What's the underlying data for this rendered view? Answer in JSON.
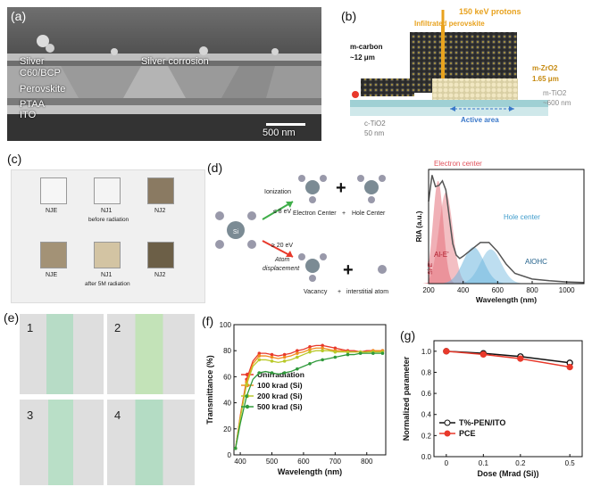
{
  "panel_a": {
    "label": "(a)",
    "layers": [
      "Silver",
      "C60/BCP",
      "Perovskite",
      "PTAA",
      "ITO"
    ],
    "corrosion": "Silver corrosion",
    "scalebar": "500 nm"
  },
  "panel_b": {
    "label": "(b)",
    "protons": "150 keV protons",
    "infiltrated": "Infiltrated perovskite",
    "mcarbon": "m-carbon",
    "mcarbon_thick": "~12 μm",
    "mzro2": "m-ZrO2",
    "mzro2_thick": "1.65 μm",
    "mtio2": "m-TiO2",
    "mtio2_thick": "~600 nm",
    "ctio2": "c-TiO2",
    "ctio2_thick": "50 nm",
    "active_area": "Active area"
  },
  "panel_c": {
    "label": "(c)",
    "samples": [
      "NJE",
      "NJ1",
      "NJ2"
    ],
    "before": "before radiation",
    "after": "after 5M radiation"
  },
  "panel_d": {
    "label": "(d)",
    "ionization": "Ionization",
    "ion_energy": "≤ 8 eV",
    "electron_center": "Electron Center",
    "plus_symbol": "+",
    "hole_center": "Hole Center",
    "displacement_energy": "≥ 20 eV",
    "atom": "Atom",
    "displacement": "displacement",
    "vacancy": "Vacancy",
    "interstitial": "interstitial atom",
    "atom_symbol": "Si",
    "chart_title_electron": "Electron center",
    "chart_title_hole": "Hole center",
    "band_alE": "Al-E'",
    "band_siE": "Si-E'",
    "band_alohc": "AlOHC",
    "ylabel": "RIA (a.u.)",
    "xlabel": "Wavelength (nm)",
    "xticks": [
      "200",
      "400",
      "600",
      "800",
      "1000"
    ]
  },
  "panel_e": {
    "label": "(e)",
    "numbers": [
      "1",
      "2",
      "3",
      "4"
    ]
  },
  "panel_f": {
    "label": "(f)"
  },
  "panel_g": {
    "label": "(g)"
  },
  "colors": {
    "unirr": "#e8392b",
    "k100": "#f08c1e",
    "k200": "#b9c92a",
    "k500": "#2f9a3b",
    "black_series": "#111111",
    "pce": "#e8392b",
    "orange_text": "#e8a21e",
    "blue_text": "#3a78c9",
    "electron_band": "#e4707a",
    "hole_band": "#6db6de"
  },
  "chart_data": [
    {
      "type": "line",
      "xlabel": "Wavelength (nm)",
      "ylabel": "Transmittance (%)",
      "xlim": [
        380,
        860
      ],
      "ylim": [
        0,
        100
      ],
      "xticks": [
        400,
        500,
        600,
        700,
        800
      ],
      "yticks": [
        0,
        20,
        40,
        60,
        80,
        100
      ],
      "legend_position": "center",
      "x": [
        385,
        400,
        420,
        440,
        460,
        480,
        500,
        520,
        540,
        560,
        580,
        600,
        620,
        640,
        660,
        680,
        700,
        720,
        740,
        760,
        780,
        800,
        820,
        840,
        850
      ],
      "series": [
        {
          "name": "Unirradiation",
          "values": [
            5,
            30,
            58,
            72,
            78,
            78,
            77,
            76,
            77,
            78,
            80,
            81,
            83,
            84,
            84,
            83,
            82,
            81,
            80,
            80,
            79,
            80,
            80,
            80,
            80
          ]
        },
        {
          "name": "100 krad (Si)",
          "values": [
            5,
            29,
            56,
            70,
            76,
            76,
            75,
            74,
            75,
            76,
            78,
            79,
            81,
            82,
            82,
            81,
            80,
            80,
            79,
            79,
            79,
            79,
            80,
            80,
            80
          ]
        },
        {
          "name": "200 krad (Si)",
          "values": [
            5,
            28,
            54,
            68,
            73,
            73,
            72,
            71,
            72,
            73,
            75,
            77,
            79,
            80,
            80,
            80,
            79,
            79,
            79,
            79,
            79,
            79,
            79,
            79,
            79
          ]
        },
        {
          "name": "500 krad (Si)",
          "values": [
            5,
            24,
            45,
            58,
            63,
            64,
            63,
            62,
            63,
            64,
            66,
            68,
            70,
            72,
            73,
            74,
            75,
            76,
            77,
            77,
            78,
            78,
            78,
            78,
            78
          ]
        }
      ]
    },
    {
      "type": "line",
      "xlabel": "Dose (Mrad (Si))",
      "ylabel": "Normalized parameter",
      "xlim": [
        -0.05,
        0.55
      ],
      "ylim": [
        0,
        1.1
      ],
      "xticks": [
        0,
        0.1,
        0.2,
        0.5
      ],
      "xtick_positions": [
        0,
        0.15,
        0.3,
        0.5
      ],
      "yticks": [
        0.0,
        0.2,
        0.4,
        0.6,
        0.8,
        1.0
      ],
      "legend_position": "lower-left",
      "x": [
        0,
        0.1,
        0.2,
        0.5
      ],
      "series": [
        {
          "name": "T%-PEN/ITO",
          "values": [
            1.0,
            0.98,
            0.95,
            0.89
          ]
        },
        {
          "name": "PCE",
          "values": [
            1.0,
            0.97,
            0.93,
            0.85
          ]
        }
      ]
    },
    {
      "type": "area",
      "title": "",
      "xlabel": "Wavelength (nm)",
      "ylabel": "RIA (a.u.)",
      "xlim": [
        200,
        1100
      ],
      "xticks": [
        200,
        400,
        600,
        800,
        1000
      ],
      "x": [
        200,
        220,
        240,
        260,
        280,
        300,
        320,
        340,
        360,
        380,
        400,
        450,
        500,
        550,
        600,
        650,
        700,
        800,
        900,
        1000,
        1100
      ],
      "series": [
        {
          "name": "total",
          "values": [
            0.72,
            0.95,
            0.85,
            0.86,
            0.9,
            0.82,
            0.58,
            0.35,
            0.25,
            0.22,
            0.24,
            0.3,
            0.36,
            0.36,
            0.28,
            0.17,
            0.09,
            0.04,
            0.025,
            0.015,
            0.01
          ]
        }
      ]
    }
  ]
}
